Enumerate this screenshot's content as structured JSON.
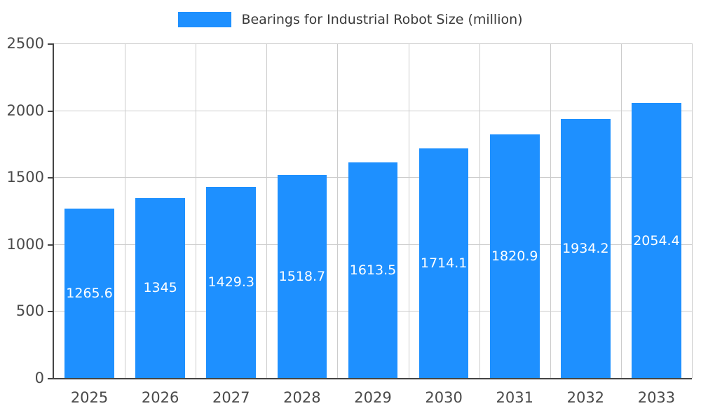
{
  "legend": {
    "label": "Bearings for Industrial Robot Size (million)",
    "swatch_color": "#1E90FF"
  },
  "chart_data": {
    "type": "bar",
    "title": "Bearings for Industrial Robot Size (million)",
    "categories": [
      "2025",
      "2026",
      "2027",
      "2028",
      "2029",
      "2030",
      "2031",
      "2032",
      "2033"
    ],
    "values": [
      1265.6,
      1345,
      1429.3,
      1518.7,
      1613.5,
      1714.1,
      1820.9,
      1934.2,
      2054.4
    ],
    "value_labels": [
      "1265.6",
      "1345",
      "1429.3",
      "1518.7",
      "1613.5",
      "1714.1",
      "1820.9",
      "1934.2",
      "2054.4"
    ],
    "xlabel": "",
    "ylabel": "",
    "ylim": [
      0,
      2500
    ],
    "yticks": [
      0,
      500,
      1000,
      1500,
      2000,
      2500
    ],
    "bar_color": "#1E90FF",
    "bar_label_color": "#ffffff",
    "grid": true,
    "legend_position": "top"
  }
}
